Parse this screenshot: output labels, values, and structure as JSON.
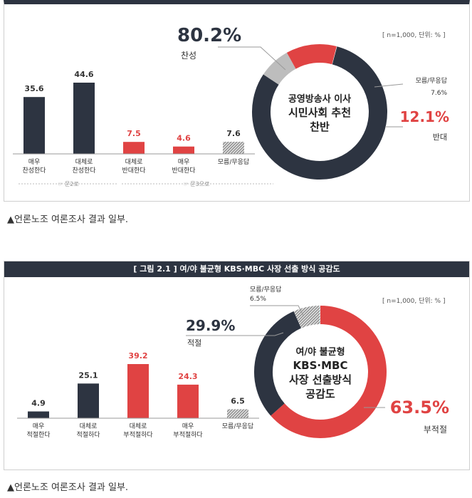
{
  "charts": [
    {
      "note": "[ n=1,000, 단위: % ]",
      "center_title": [
        "공영방송사 이사",
        "시민사회 추천",
        "찬반"
      ],
      "colors": {
        "dark": "#2d3441",
        "red": "#e04343",
        "gray": "#bdbdbd"
      },
      "bar_labels": [
        [
          "매우",
          "찬성한다"
        ],
        [
          "대체로",
          "찬성한다"
        ],
        [
          "대체로",
          "반대한다"
        ],
        [
          "매우",
          "반대한다"
        ],
        [
          "모름/무응답"
        ]
      ],
      "bar_values": [
        35.6,
        44.6,
        7.5,
        4.6,
        7.6
      ],
      "bar_styles": [
        "dark",
        "dark",
        "red",
        "red",
        "hatch"
      ],
      "groups": [
        "☞ 문2로",
        "☞ 문3으로"
      ],
      "donut": [
        {
          "name": "찬성",
          "value": 80.2,
          "label": "80.2%",
          "style": "dark"
        },
        {
          "name": "모름/무응답",
          "value": 7.6,
          "label": "7.6%",
          "style": "gray"
        },
        {
          "name": "반대",
          "value": 12.1,
          "label": "12.1%",
          "style": "red"
        }
      ],
      "caption": "▲언론노조 여론조사 결과 일부."
    },
    {
      "header": "[ 그림 2.1 ]   여/야 불균형 KBS·MBC 사장 선출 방식 공감도",
      "note": "[ n=1,000, 단위: % ]",
      "center_title": [
        "여/야 불균형",
        "KBS·MBC",
        "사장 선출방식",
        "공감도"
      ],
      "colors": {
        "dark": "#2d3441",
        "red": "#e04343",
        "gray": "#bdbdbd"
      },
      "bar_labels": [
        [
          "매우",
          "적절한다"
        ],
        [
          "대체로",
          "적절하다"
        ],
        [
          "대체로",
          "부적절하다"
        ],
        [
          "매우",
          "부적절하다"
        ],
        [
          "모름/무응답"
        ]
      ],
      "bar_values": [
        4.9,
        25.1,
        39.2,
        24.3,
        6.5
      ],
      "bar_styles": [
        "dark",
        "dark",
        "red",
        "red",
        "hatch"
      ],
      "donut": [
        {
          "name": "부적절",
          "value": 63.5,
          "label": "63.5%",
          "style": "red"
        },
        {
          "name": "적절",
          "value": 29.9,
          "label": "29.9%",
          "style": "dark"
        },
        {
          "name": "모름/무응답",
          "value": 6.5,
          "label": "6.5%",
          "style": "hatch"
        }
      ],
      "caption": "▲언론노조 여론조사 결과 일부."
    }
  ],
  "chart_data": [
    {
      "type": "bar",
      "categories": [
        "매우 찬성한다",
        "대체로 찬성한다",
        "대체로 반대한다",
        "매우 반대한다",
        "모름/무응답"
      ],
      "values": [
        35.6,
        44.6,
        7.5,
        4.6,
        7.6
      ],
      "title": "",
      "xlabel": "",
      "ylabel": ""
    },
    {
      "type": "pie",
      "categories": [
        "찬성",
        "모름/무응답",
        "반대"
      ],
      "values": [
        80.2,
        7.6,
        12.1
      ],
      "title": "공영방송사 이사 시민사회 추천 찬반"
    },
    {
      "type": "bar",
      "categories": [
        "매우 적절한다",
        "대체로 적절하다",
        "대체로 부적절하다",
        "매우 부적절하다",
        "모름/무응답"
      ],
      "values": [
        4.9,
        25.1,
        39.2,
        24.3,
        6.5
      ],
      "title": "여/야 불균형 KBS·MBC 사장 선출 방식 공감도",
      "xlabel": "",
      "ylabel": ""
    },
    {
      "type": "pie",
      "categories": [
        "부적절",
        "적절",
        "모름/무응답"
      ],
      "values": [
        63.5,
        29.9,
        6.5
      ],
      "title": "여/야 불균형 KBS·MBC 사장 선출방식 공감도"
    }
  ]
}
